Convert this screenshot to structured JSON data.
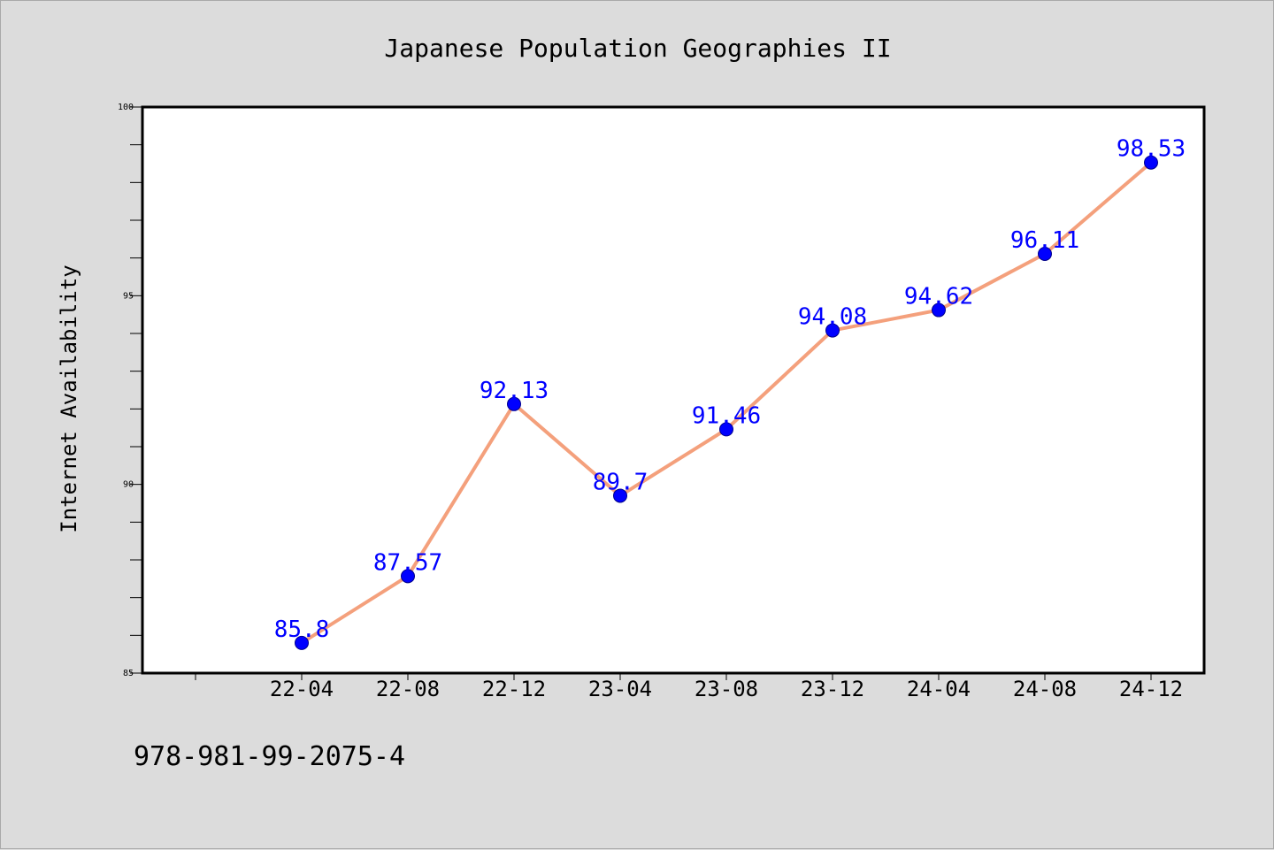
{
  "chart_data": {
    "type": "line",
    "title": "Japanese Population Geographies II",
    "xlabel": "",
    "ylabel": "Internet Availability",
    "categories": [
      "22-04",
      "22-08",
      "22-12",
      "23-04",
      "23-08",
      "23-12",
      "24-04",
      "24-08",
      "24-12"
    ],
    "series": [
      {
        "values": [
          85.8,
          87.57,
          92.13,
          89.7,
          91.46,
          94.08,
          94.62,
          96.11,
          98.53
        ],
        "data_labels": [
          "85.8",
          "87.57",
          "92.13",
          "89.7",
          "91.46",
          "94.08",
          "94.62",
          "96.11",
          "98.53"
        ]
      }
    ],
    "ylim": [
      85,
      100
    ],
    "y_ticks": [
      "85",
      "90",
      "95",
      "100"
    ],
    "grid": false,
    "legend": "none",
    "colors": {
      "line": "#f4a07c",
      "marker": "#0000ff",
      "data_label": "#0000ff",
      "background": "#dcdcdc",
      "plot_area": "#ffffff"
    }
  },
  "footer_text": "978-981-99-2075-4"
}
